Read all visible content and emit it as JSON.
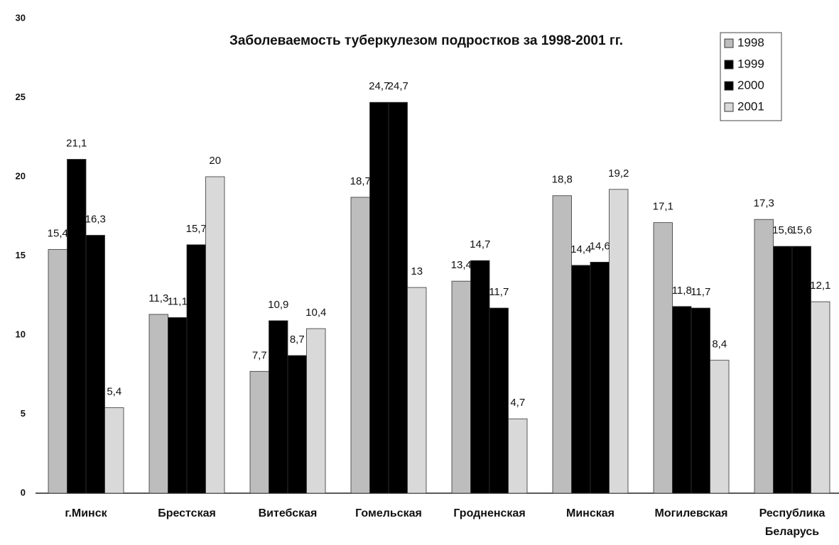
{
  "chart_data": {
    "type": "bar",
    "title": "Заболеваемость туберкулезом подростков за 1998-2001 гг.",
    "categories": [
      "г.Минск",
      "Брестская",
      "Витебская",
      "Гомельская",
      "Гродненская",
      "Минская",
      "Могилевская",
      "Республика Беларусь"
    ],
    "series": [
      {
        "name": "1998",
        "color": "#bdbdbd",
        "values": [
          15.4,
          11.3,
          7.7,
          18.7,
          13.4,
          18.8,
          17.1,
          17.3
        ],
        "value_labels": [
          "15,4",
          "11,3",
          "7,7",
          "18,7",
          "13,4",
          "18,8",
          "17,1",
          "17,3"
        ]
      },
      {
        "name": "1999",
        "color": "#000000",
        "values": [
          21.1,
          11.1,
          10.9,
          24.7,
          14.7,
          14.4,
          11.8,
          15.6
        ],
        "value_labels": [
          "21,1",
          "11,1",
          "10,9",
          "24,7",
          "14,7",
          "14,4",
          "11,8",
          "15,6"
        ]
      },
      {
        "name": "2000",
        "color": "#000000",
        "values": [
          16.3,
          15.7,
          8.7,
          24.7,
          11.7,
          14.6,
          11.7,
          15.6
        ],
        "value_labels": [
          "16,3",
          "15,7",
          "8,7",
          "24,7",
          "11,7",
          "14,6",
          "11,7",
          "15,6"
        ]
      },
      {
        "name": "2001",
        "color": "#d9d9d9",
        "values": [
          5.4,
          20,
          10.4,
          13,
          4.7,
          19.2,
          8.4,
          12.1
        ],
        "value_labels": [
          "5,4",
          "20",
          "10,4",
          "13",
          "4,7",
          "19,2",
          "8,4",
          "12,1"
        ]
      }
    ],
    "ylim": [
      0,
      30
    ],
    "yticks": [
      0,
      5,
      10,
      15,
      20,
      25,
      30
    ],
    "grid": false,
    "legend": "top-right"
  }
}
